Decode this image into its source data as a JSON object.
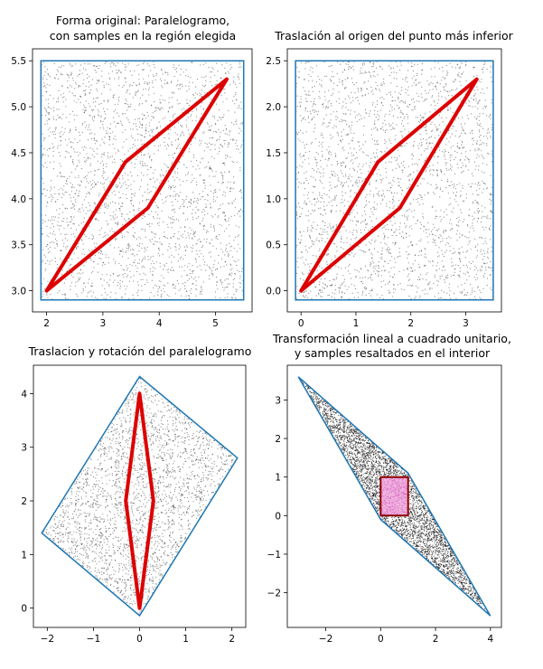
{
  "chart_data": [
    {
      "type": "scatter",
      "title_lines": [
        "Forma original: Paralelogramo,",
        "con samples en la región elegida"
      ],
      "xlim": [
        1.75,
        5.65
      ],
      "ylim": [
        2.77,
        5.63
      ],
      "xticks": [
        2,
        3,
        4,
        5
      ],
      "xtick_labels": [
        "2",
        "3",
        "4",
        "5"
      ],
      "yticks": [
        3.0,
        3.5,
        4.0,
        4.5,
        5.0,
        5.5
      ],
      "ytick_labels": [
        "3.0",
        "3.5",
        "4.0",
        "4.5",
        "5.0",
        "5.5"
      ],
      "sample_region": [
        [
          1.9,
          2.9
        ],
        [
          5.5,
          2.9
        ],
        [
          5.5,
          5.5
        ],
        [
          1.9,
          5.5
        ]
      ],
      "parallelogram": [
        [
          2.0,
          3.0
        ],
        [
          3.8,
          3.9
        ],
        [
          5.2,
          5.3
        ],
        [
          3.4,
          4.4
        ]
      ]
    },
    {
      "type": "scatter",
      "title_lines": [
        "Traslación al origen del punto más inferior"
      ],
      "xlim": [
        -0.25,
        3.65
      ],
      "ylim": [
        -0.23,
        2.63
      ],
      "xticks": [
        0,
        1,
        2,
        3
      ],
      "xtick_labels": [
        "0",
        "1",
        "2",
        "3"
      ],
      "yticks": [
        0.0,
        0.5,
        1.0,
        1.5,
        2.0,
        2.5
      ],
      "ytick_labels": [
        "0.0",
        "0.5",
        "1.0",
        "1.5",
        "2.0",
        "2.5"
      ],
      "sample_region": [
        [
          -0.1,
          -0.1
        ],
        [
          3.5,
          -0.1
        ],
        [
          3.5,
          2.5
        ],
        [
          -0.1,
          2.5
        ]
      ],
      "parallelogram": [
        [
          0.0,
          0.0
        ],
        [
          1.8,
          0.9
        ],
        [
          3.2,
          2.3
        ],
        [
          1.4,
          1.4
        ]
      ]
    },
    {
      "type": "scatter",
      "title_lines": [
        "Traslacion y rotación del paralelogramo"
      ],
      "xlim": [
        -2.3,
        2.3
      ],
      "ylim": [
        -0.36,
        4.53
      ],
      "xticks": [
        -2,
        -1,
        0,
        1,
        2
      ],
      "xtick_labels": [
        "−2",
        "−1",
        "0",
        "1",
        "2"
      ],
      "yticks": [
        0,
        1,
        2,
        3,
        4
      ],
      "ytick_labels": [
        "0",
        "1",
        "2",
        "3",
        "4"
      ],
      "sample_region": [
        [
          0.0,
          -0.14
        ],
        [
          2.12,
          2.8
        ],
        [
          0.0,
          4.32
        ],
        [
          -2.12,
          1.4
        ]
      ],
      "parallelogram": [
        [
          0.0,
          0.0
        ],
        [
          0.3,
          2.0
        ],
        [
          0.0,
          4.0
        ],
        [
          -0.3,
          2.0
        ]
      ]
    },
    {
      "type": "scatter",
      "title_lines": [
        "Transformación lineal a cuadrado unitario,",
        "y samples resaltados en el interior"
      ],
      "xlim": [
        -3.4,
        4.4
      ],
      "ylim": [
        -2.9,
        3.9
      ],
      "xticks": [
        -2,
        0,
        2,
        4
      ],
      "xtick_labels": [
        "−2",
        "0",
        "2",
        "4"
      ],
      "yticks": [
        -2,
        -1,
        0,
        1,
        2,
        3
      ],
      "ytick_labels": [
        "−2",
        "−1",
        "0",
        "1",
        "2",
        "3"
      ],
      "sample_region": [
        [
          -3.0,
          3.6
        ],
        [
          1.0,
          1.1
        ],
        [
          4.0,
          -2.6
        ],
        [
          0.0,
          -0.1
        ]
      ],
      "parallelogram": [
        [
          0.0,
          0.0
        ],
        [
          1.0,
          0.0
        ],
        [
          1.0,
          1.0
        ],
        [
          0.0,
          1.0
        ]
      ]
    }
  ]
}
